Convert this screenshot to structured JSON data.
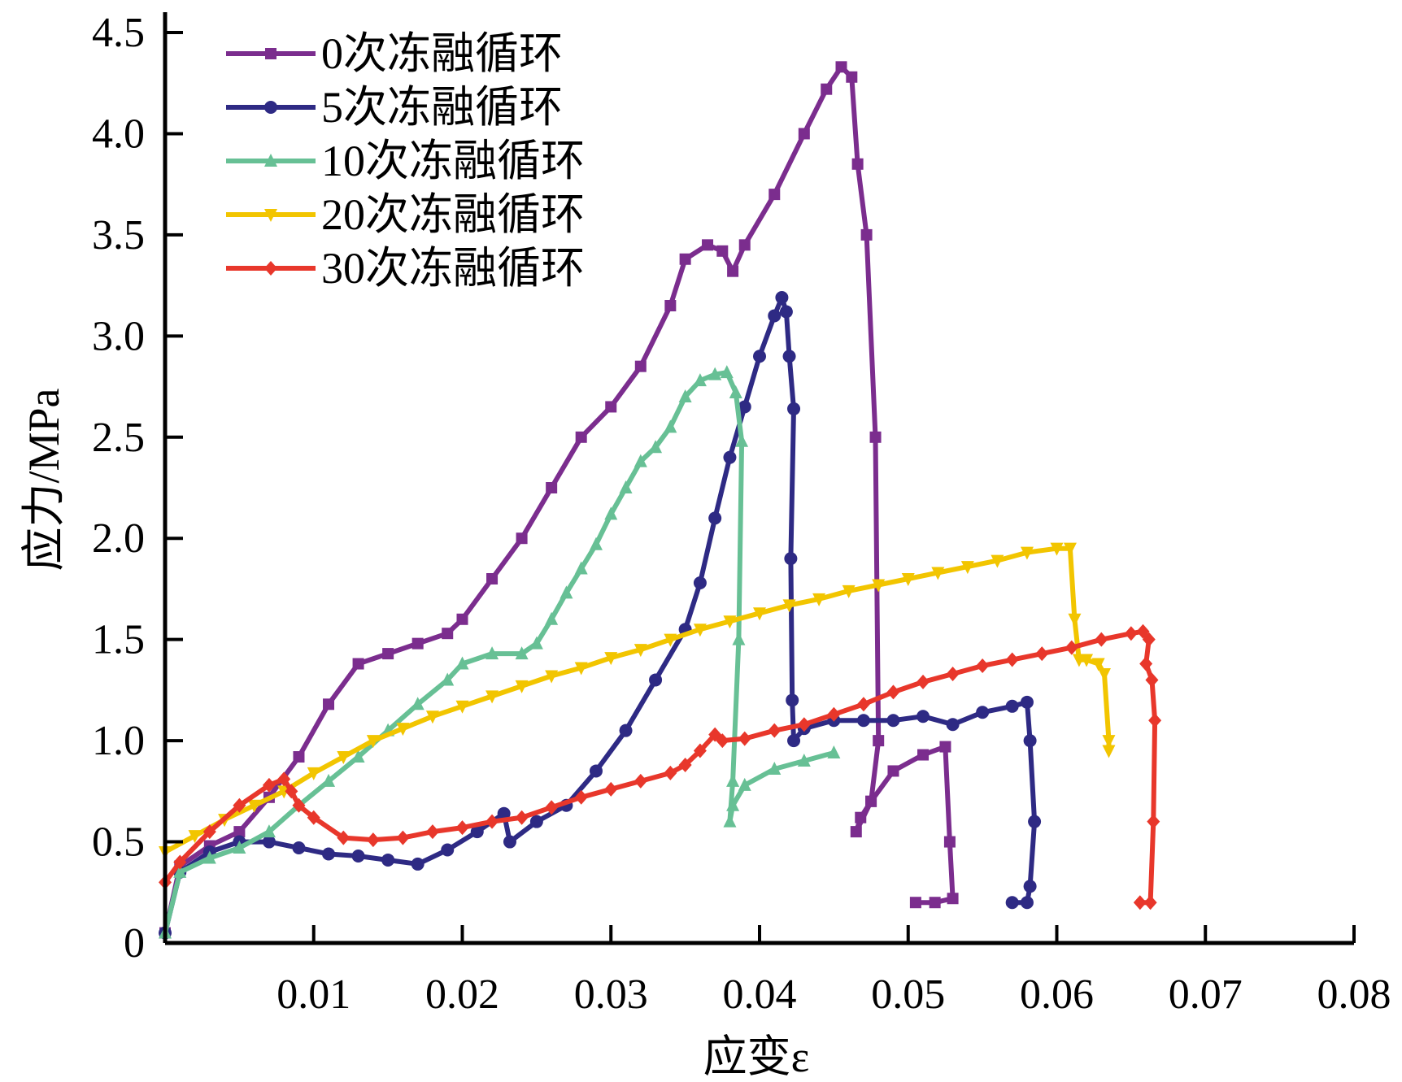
{
  "chart_data": {
    "type": "line",
    "xlabel": "应变ε",
    "ylabel": "应力/MPa",
    "xlim": [
      0,
      0.08
    ],
    "ylim": [
      0,
      4.5
    ],
    "x_ticks": [
      {
        "value": 0.01,
        "label": "0.01"
      },
      {
        "value": 0.02,
        "label": "0.02"
      },
      {
        "value": 0.03,
        "label": "0.03"
      },
      {
        "value": 0.04,
        "label": "0.04"
      },
      {
        "value": 0.05,
        "label": "0.05"
      },
      {
        "value": 0.06,
        "label": "0.06"
      },
      {
        "value": 0.07,
        "label": "0.07"
      },
      {
        "value": 0.08,
        "label": "0.08"
      }
    ],
    "y_ticks": [
      {
        "value": 0,
        "label": "0"
      },
      {
        "value": 0.5,
        "label": "0.5"
      },
      {
        "value": 1.0,
        "label": "1.0"
      },
      {
        "value": 1.5,
        "label": "1.5"
      },
      {
        "value": 2.0,
        "label": "2.0"
      },
      {
        "value": 2.5,
        "label": "2.5"
      },
      {
        "value": 3.0,
        "label": "3.0"
      },
      {
        "value": 3.5,
        "label": "3.5"
      },
      {
        "value": 4.0,
        "label": "4.0"
      },
      {
        "value": 4.5,
        "label": "4.5"
      }
    ],
    "legend_position": "top-left",
    "grid": false,
    "series": [
      {
        "name": "0次冻融循环",
        "color": "#7b2d8e",
        "marker": "square",
        "points": [
          [
            0,
            0.05
          ],
          [
            0.001,
            0.38
          ],
          [
            0.003,
            0.48
          ],
          [
            0.005,
            0.55
          ],
          [
            0.007,
            0.72
          ],
          [
            0.009,
            0.92
          ],
          [
            0.011,
            1.18
          ],
          [
            0.013,
            1.38
          ],
          [
            0.015,
            1.43
          ],
          [
            0.017,
            1.48
          ],
          [
            0.019,
            1.53
          ],
          [
            0.02,
            1.6
          ],
          [
            0.022,
            1.8
          ],
          [
            0.024,
            2.0
          ],
          [
            0.026,
            2.25
          ],
          [
            0.028,
            2.5
          ],
          [
            0.03,
            2.65
          ],
          [
            0.032,
            2.85
          ],
          [
            0.034,
            3.15
          ],
          [
            0.035,
            3.38
          ],
          [
            0.0365,
            3.45
          ],
          [
            0.0375,
            3.42
          ],
          [
            0.0382,
            3.32
          ],
          [
            0.039,
            3.45
          ],
          [
            0.041,
            3.7
          ],
          [
            0.043,
            4.0
          ],
          [
            0.0445,
            4.22
          ],
          [
            0.0455,
            4.33
          ],
          [
            0.0462,
            4.28
          ],
          [
            0.0466,
            3.85
          ],
          [
            0.0472,
            3.5
          ],
          [
            0.0478,
            2.5
          ],
          [
            0.048,
            1.0
          ],
          [
            0.0475,
            0.7
          ],
          [
            0.0465,
            0.55
          ],
          [
            0.0468,
            0.62
          ],
          [
            0.0475,
            0.7
          ],
          [
            0.049,
            0.85
          ],
          [
            0.051,
            0.93
          ],
          [
            0.0525,
            0.97
          ],
          [
            0.0528,
            0.5
          ],
          [
            0.053,
            0.22
          ],
          [
            0.0518,
            0.2
          ],
          [
            0.0505,
            0.2
          ]
        ]
      },
      {
        "name": "5次冻融循环",
        "color": "#2e2a84",
        "marker": "circle",
        "points": [
          [
            0,
            0.05
          ],
          [
            0.001,
            0.35
          ],
          [
            0.003,
            0.45
          ],
          [
            0.005,
            0.5
          ],
          [
            0.007,
            0.5
          ],
          [
            0.009,
            0.47
          ],
          [
            0.011,
            0.44
          ],
          [
            0.013,
            0.43
          ],
          [
            0.015,
            0.41
          ],
          [
            0.017,
            0.39
          ],
          [
            0.019,
            0.46
          ],
          [
            0.021,
            0.55
          ],
          [
            0.0228,
            0.64
          ],
          [
            0.0232,
            0.5
          ],
          [
            0.025,
            0.6
          ],
          [
            0.027,
            0.68
          ],
          [
            0.029,
            0.85
          ],
          [
            0.031,
            1.05
          ],
          [
            0.033,
            1.3
          ],
          [
            0.035,
            1.55
          ],
          [
            0.036,
            1.78
          ],
          [
            0.037,
            2.1
          ],
          [
            0.038,
            2.4
          ],
          [
            0.039,
            2.65
          ],
          [
            0.04,
            2.9
          ],
          [
            0.041,
            3.1
          ],
          [
            0.0415,
            3.19
          ],
          [
            0.0418,
            3.12
          ],
          [
            0.042,
            2.9
          ],
          [
            0.0423,
            2.64
          ],
          [
            0.0421,
            1.9
          ],
          [
            0.0422,
            1.2
          ],
          [
            0.0423,
            1.0
          ],
          [
            0.043,
            1.06
          ],
          [
            0.045,
            1.1
          ],
          [
            0.047,
            1.1
          ],
          [
            0.049,
            1.1
          ],
          [
            0.051,
            1.12
          ],
          [
            0.053,
            1.08
          ],
          [
            0.055,
            1.14
          ],
          [
            0.057,
            1.17
          ],
          [
            0.058,
            1.19
          ],
          [
            0.0582,
            1.0
          ],
          [
            0.0585,
            0.6
          ],
          [
            0.0582,
            0.28
          ],
          [
            0.058,
            0.2
          ],
          [
            0.057,
            0.2
          ]
        ]
      },
      {
        "name": "10次冻融循环",
        "color": "#67c095",
        "marker": "triangle-up",
        "points": [
          [
            0,
            0.05
          ],
          [
            0.001,
            0.35
          ],
          [
            0.003,
            0.42
          ],
          [
            0.005,
            0.47
          ],
          [
            0.007,
            0.55
          ],
          [
            0.009,
            0.68
          ],
          [
            0.011,
            0.8
          ],
          [
            0.013,
            0.92
          ],
          [
            0.015,
            1.05
          ],
          [
            0.017,
            1.18
          ],
          [
            0.019,
            1.3
          ],
          [
            0.02,
            1.38
          ],
          [
            0.022,
            1.43
          ],
          [
            0.024,
            1.43
          ],
          [
            0.025,
            1.48
          ],
          [
            0.026,
            1.6
          ],
          [
            0.027,
            1.73
          ],
          [
            0.028,
            1.85
          ],
          [
            0.029,
            1.97
          ],
          [
            0.03,
            2.12
          ],
          [
            0.031,
            2.25
          ],
          [
            0.032,
            2.38
          ],
          [
            0.033,
            2.45
          ],
          [
            0.034,
            2.55
          ],
          [
            0.035,
            2.7
          ],
          [
            0.036,
            2.78
          ],
          [
            0.037,
            2.81
          ],
          [
            0.0378,
            2.82
          ],
          [
            0.0384,
            2.72
          ],
          [
            0.0388,
            2.48
          ],
          [
            0.0386,
            1.5
          ],
          [
            0.0382,
            0.8
          ],
          [
            0.038,
            0.6
          ],
          [
            0.0382,
            0.68
          ],
          [
            0.039,
            0.78
          ],
          [
            0.041,
            0.86
          ],
          [
            0.043,
            0.9
          ],
          [
            0.045,
            0.94
          ]
        ]
      },
      {
        "name": "20次冻融循环",
        "color": "#f2c500",
        "marker": "triangle-down",
        "points": [
          [
            0,
            0.45
          ],
          [
            0.002,
            0.53
          ],
          [
            0.004,
            0.61
          ],
          [
            0.006,
            0.68
          ],
          [
            0.008,
            0.75
          ],
          [
            0.01,
            0.84
          ],
          [
            0.012,
            0.92
          ],
          [
            0.014,
            1.0
          ],
          [
            0.016,
            1.06
          ],
          [
            0.018,
            1.12
          ],
          [
            0.02,
            1.17
          ],
          [
            0.022,
            1.22
          ],
          [
            0.024,
            1.27
          ],
          [
            0.026,
            1.32
          ],
          [
            0.028,
            1.36
          ],
          [
            0.03,
            1.41
          ],
          [
            0.032,
            1.45
          ],
          [
            0.034,
            1.5
          ],
          [
            0.036,
            1.55
          ],
          [
            0.038,
            1.59
          ],
          [
            0.04,
            1.63
          ],
          [
            0.042,
            1.67
          ],
          [
            0.044,
            1.7
          ],
          [
            0.046,
            1.74
          ],
          [
            0.048,
            1.77
          ],
          [
            0.05,
            1.8
          ],
          [
            0.052,
            1.83
          ],
          [
            0.054,
            1.86
          ],
          [
            0.056,
            1.89
          ],
          [
            0.058,
            1.93
          ],
          [
            0.06,
            1.95
          ],
          [
            0.0609,
            1.95
          ],
          [
            0.0612,
            1.6
          ],
          [
            0.0615,
            1.4
          ],
          [
            0.062,
            1.4
          ],
          [
            0.0628,
            1.38
          ],
          [
            0.0632,
            1.33
          ],
          [
            0.0635,
            1.0
          ],
          [
            0.0635,
            0.95
          ]
        ]
      },
      {
        "name": "30次冻融循环",
        "color": "#e8372b",
        "marker": "diamond",
        "points": [
          [
            0,
            0.3
          ],
          [
            0.001,
            0.4
          ],
          [
            0.003,
            0.55
          ],
          [
            0.005,
            0.68
          ],
          [
            0.007,
            0.78
          ],
          [
            0.008,
            0.81
          ],
          [
            0.0085,
            0.75
          ],
          [
            0.009,
            0.68
          ],
          [
            0.01,
            0.62
          ],
          [
            0.012,
            0.52
          ],
          [
            0.014,
            0.51
          ],
          [
            0.016,
            0.52
          ],
          [
            0.018,
            0.55
          ],
          [
            0.02,
            0.57
          ],
          [
            0.022,
            0.6
          ],
          [
            0.024,
            0.62
          ],
          [
            0.026,
            0.67
          ],
          [
            0.028,
            0.72
          ],
          [
            0.03,
            0.76
          ],
          [
            0.032,
            0.8
          ],
          [
            0.034,
            0.84
          ],
          [
            0.035,
            0.88
          ],
          [
            0.036,
            0.95
          ],
          [
            0.037,
            1.03
          ],
          [
            0.0375,
            1.0
          ],
          [
            0.039,
            1.01
          ],
          [
            0.041,
            1.05
          ],
          [
            0.043,
            1.08
          ],
          [
            0.045,
            1.13
          ],
          [
            0.047,
            1.18
          ],
          [
            0.049,
            1.24
          ],
          [
            0.051,
            1.29
          ],
          [
            0.053,
            1.33
          ],
          [
            0.055,
            1.37
          ],
          [
            0.057,
            1.4
          ],
          [
            0.059,
            1.43
          ],
          [
            0.061,
            1.46
          ],
          [
            0.063,
            1.5
          ],
          [
            0.065,
            1.53
          ],
          [
            0.0658,
            1.54
          ],
          [
            0.0662,
            1.5
          ],
          [
            0.066,
            1.38
          ],
          [
            0.0664,
            1.3
          ],
          [
            0.0666,
            1.1
          ],
          [
            0.0665,
            0.6
          ],
          [
            0.0663,
            0.2
          ],
          [
            0.0656,
            0.2
          ]
        ]
      }
    ]
  }
}
